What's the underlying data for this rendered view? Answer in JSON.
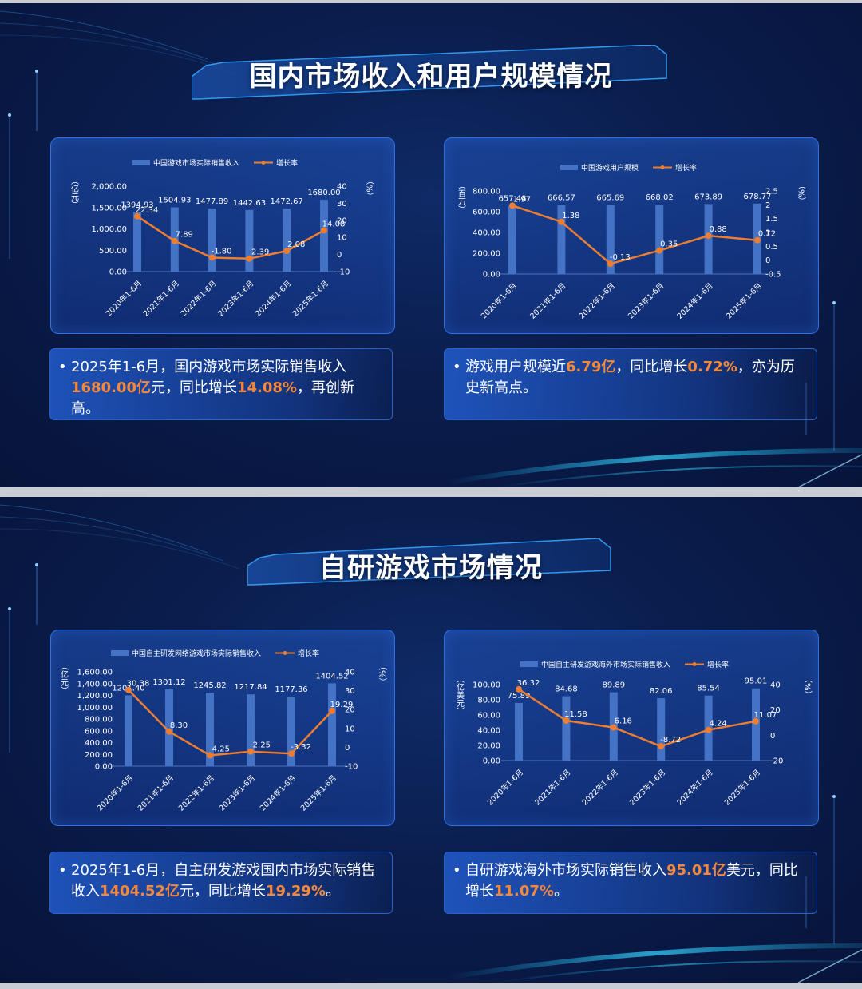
{
  "slides": [
    {
      "title": "国内市场收入和用户规模情况",
      "charts": [
        {
          "chart_data": {
            "type": "bar",
            "categories": [
              "2020年1-6月",
              "2021年1-6月",
              "2022年1-6月",
              "2023年1-6月",
              "2024年1-6月",
              "2025年1-6月"
            ],
            "series": [
              {
                "name": "中国游戏市场实际销售收入",
                "type": "bar",
                "values": [
                  1394.93,
                  1504.93,
                  1477.89,
                  1442.63,
                  1472.67,
                  1680.0
                ],
                "labels": [
                  "1394.93",
                  "1504.93",
                  "1477.89",
                  "1442.63",
                  "1472.67",
                  "1680.00"
                ]
              },
              {
                "name": "增长率",
                "type": "line",
                "axis": "right",
                "values": [
                  22.34,
                  7.89,
                  -1.8,
                  -2.39,
                  2.08,
                  14.08
                ],
                "labels": [
                  "22.34",
                  "7.89",
                  "-1.80",
                  "-2.39",
                  "2.08",
                  "14.08"
                ]
              }
            ],
            "ylabel_left": "（亿元）",
            "ylabel_right": "（%）",
            "ylim_left": [
              0,
              2000
            ],
            "yticks_left": [
              "0.00",
              "500.00",
              "1,000.00",
              "1,500.00",
              "2,000.00"
            ],
            "ylim_right": [
              -10,
              40
            ],
            "yticks_right": [
              "-10",
              "0",
              "10",
              "20",
              "30",
              "40"
            ],
            "legend": "top"
          }
        },
        {
          "chart_data": {
            "type": "bar",
            "categories": [
              "2020年1-6月",
              "2021年1-6月",
              "2022年1-6月",
              "2023年1-6月",
              "2024年1-6月",
              "2025年1-6月"
            ],
            "series": [
              {
                "name": "中国游戏用户规模",
                "type": "bar",
                "values": [
                  657.48,
                  666.57,
                  665.69,
                  668.02,
                  673.89,
                  678.77
                ],
                "labels": [
                  "657.48",
                  "666.57",
                  "665.69",
                  "668.02",
                  "673.89",
                  "678.77"
                ]
              },
              {
                "name": "增长率",
                "type": "line",
                "axis": "right",
                "values": [
                  1.97,
                  1.38,
                  -0.13,
                  0.35,
                  0.88,
                  0.72
                ],
                "labels": [
                  "1.97",
                  "1.38",
                  "-0.13",
                  "0.35",
                  "0.88",
                  "0.72"
                ]
              }
            ],
            "ylabel_left": "（百万）",
            "ylabel_right": "（%）",
            "ylim_left": [
              0,
              800
            ],
            "yticks_left": [
              "0.00",
              "200.00",
              "400.00",
              "600.00",
              "800.00"
            ],
            "ylim_right": [
              -0.5,
              2.5
            ],
            "yticks_right": [
              "-0.5",
              "0",
              "0.5",
              "1",
              "1.5",
              "2",
              "2.5"
            ],
            "legend": "top"
          }
        }
      ],
      "notes": [
        {
          "parts": [
            {
              "text": "2025年1-6月，国内游戏市场实际销售收入",
              "hl": false
            },
            {
              "text": "1680.00亿",
              "hl": true
            },
            {
              "text": "元，同比增长",
              "hl": false
            },
            {
              "text": "14.08%",
              "hl": true
            },
            {
              "text": "，再创新高。",
              "hl": false
            }
          ]
        },
        {
          "parts": [
            {
              "text": "游戏用户规模近",
              "hl": false
            },
            {
              "text": "6.79亿",
              "hl": true
            },
            {
              "text": "，同比增长",
              "hl": false
            },
            {
              "text": "0.72%",
              "hl": true
            },
            {
              "text": "，亦为历史新高点。",
              "hl": false
            }
          ]
        }
      ]
    },
    {
      "title": "自研游戏市场情况",
      "charts": [
        {
          "chart_data": {
            "type": "bar",
            "categories": [
              "2020年1-6月",
              "2021年1-6月",
              "2022年1-6月",
              "2023年1-6月",
              "2024年1-6月",
              "2025年1-6月"
            ],
            "series": [
              {
                "name": "中国自主研发网络游戏市场实际销售收入",
                "type": "bar",
                "values": [
                  1201.4,
                  1301.12,
                  1245.82,
                  1217.84,
                  1177.36,
                  1404.52
                ],
                "labels": [
                  "1201.40",
                  "1301.12",
                  "1245.82",
                  "1217.84",
                  "1177.36",
                  "1404.52"
                ]
              },
              {
                "name": "增长率",
                "type": "line",
                "axis": "right",
                "values": [
                  30.38,
                  8.3,
                  -4.25,
                  -2.25,
                  -3.32,
                  19.29
                ],
                "labels": [
                  "30.38",
                  "8.30",
                  "-4.25",
                  "-2.25",
                  "-3.32",
                  "19.29"
                ]
              }
            ],
            "ylabel_left": "（亿元）",
            "ylabel_right": "（%）",
            "ylim_left": [
              0,
              1600
            ],
            "yticks_left": [
              "0.00",
              "200.00",
              "400.00",
              "600.00",
              "800.00",
              "1,000.00",
              "1,200.00",
              "1,400.00",
              "1,600.00"
            ],
            "ylim_right": [
              -10,
              40
            ],
            "yticks_right": [
              "-10",
              "0",
              "10",
              "20",
              "30",
              "40"
            ],
            "legend": "top"
          }
        },
        {
          "chart_data": {
            "type": "bar",
            "categories": [
              "2020年1-6月",
              "2021年1-6月",
              "2022年1-6月",
              "2023年1-6月",
              "2024年1-6月",
              "2025年1-6月"
            ],
            "series": [
              {
                "name": "中国自主研发游戏海外市场实际销售收入",
                "type": "bar",
                "values": [
                  75.89,
                  84.68,
                  89.89,
                  82.06,
                  85.54,
                  95.01
                ],
                "labels": [
                  "75.89",
                  "84.68",
                  "89.89",
                  "82.06",
                  "85.54",
                  "95.01"
                ]
              },
              {
                "name": "增长率",
                "type": "line",
                "axis": "right",
                "values": [
                  36.32,
                  11.58,
                  6.16,
                  -8.72,
                  4.24,
                  11.07
                ],
                "labels": [
                  "36.32",
                  "11.58",
                  "6.16",
                  "-8.72",
                  "4.24",
                  "11.07"
                ]
              }
            ],
            "ylabel_left": "（亿美元）",
            "ylabel_right": "（%）",
            "ylim_left": [
              0,
              100
            ],
            "yticks_left": [
              "0.00",
              "20.00",
              "40.00",
              "60.00",
              "80.00",
              "100.00"
            ],
            "ylim_right": [
              -20,
              40
            ],
            "yticks_right": [
              "-20",
              "0",
              "20",
              "40"
            ],
            "legend": "top"
          }
        }
      ],
      "notes": [
        {
          "parts": [
            {
              "text": "2025年1-6月，自主研发游戏国内市场实际销售收入",
              "hl": false
            },
            {
              "text": "1404.52亿",
              "hl": true
            },
            {
              "text": "元，同比增长",
              "hl": false
            },
            {
              "text": "19.29%",
              "hl": true
            },
            {
              "text": "。",
              "hl": false
            }
          ]
        },
        {
          "parts": [
            {
              "text": "自研游戏海外市场实际销售收入",
              "hl": false
            },
            {
              "text": "95.01亿",
              "hl": true
            },
            {
              "text": "美元，同比增长",
              "hl": false
            },
            {
              "text": "11.07%",
              "hl": true
            },
            {
              "text": "。",
              "hl": false
            }
          ]
        }
      ]
    }
  ],
  "colors": {
    "bar": "#4472c4",
    "line": "#ed7d31",
    "text": "#ffffff",
    "highlight": "#f5883a",
    "axis_text": "#ffffff"
  }
}
